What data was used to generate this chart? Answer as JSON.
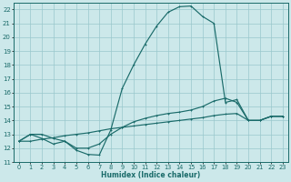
{
  "xlabel": "Humidex (Indice chaleur)",
  "xlim": [
    -0.5,
    23.5
  ],
  "ylim": [
    11,
    22.5
  ],
  "xtick_vals": [
    0,
    1,
    2,
    3,
    4,
    5,
    6,
    7,
    8,
    9,
    10,
    11,
    12,
    13,
    14,
    15,
    16,
    17,
    18,
    19,
    20,
    21,
    22,
    23
  ],
  "ytick_vals": [
    11,
    12,
    13,
    14,
    15,
    16,
    17,
    18,
    19,
    20,
    21,
    22
  ],
  "background_color": "#cce8ea",
  "grid_color": "#99c8cc",
  "line_color": "#1a6b6a",
  "curve1_x": [
    0,
    1,
    2,
    3,
    4,
    5,
    6,
    7,
    8,
    9,
    10,
    11,
    12,
    13,
    14,
    15,
    16,
    17,
    18,
    19,
    20,
    21,
    22,
    23
  ],
  "curve1_y": [
    12.5,
    13.0,
    13.0,
    12.7,
    12.5,
    11.85,
    11.55,
    11.5,
    13.3,
    16.3,
    18.0,
    19.5,
    20.8,
    21.8,
    22.2,
    22.25,
    21.5,
    21.0,
    15.3,
    15.5,
    14.0,
    14.0,
    14.3,
    14.3
  ],
  "curve2_x": [
    0,
    1,
    2,
    3,
    4,
    5,
    6,
    7,
    8,
    9,
    10,
    11,
    12,
    13,
    14,
    15,
    16,
    17,
    18,
    19,
    20,
    21,
    22,
    23
  ],
  "curve2_y": [
    12.5,
    13.0,
    12.7,
    12.3,
    12.5,
    12.0,
    12.0,
    12.3,
    13.0,
    13.5,
    13.9,
    14.15,
    14.35,
    14.5,
    14.6,
    14.75,
    15.0,
    15.4,
    15.6,
    15.3,
    14.0,
    14.0,
    14.3,
    14.3
  ],
  "curve3_x": [
    0,
    1,
    2,
    3,
    4,
    5,
    6,
    7,
    8,
    9,
    10,
    11,
    12,
    13,
    14,
    15,
    16,
    17,
    18,
    19,
    20,
    21,
    22,
    23
  ],
  "curve3_y": [
    12.5,
    12.5,
    12.65,
    12.75,
    12.9,
    13.0,
    13.1,
    13.25,
    13.4,
    13.5,
    13.6,
    13.7,
    13.8,
    13.9,
    14.0,
    14.1,
    14.2,
    14.35,
    14.45,
    14.5,
    14.0,
    14.0,
    14.3,
    14.3
  ]
}
